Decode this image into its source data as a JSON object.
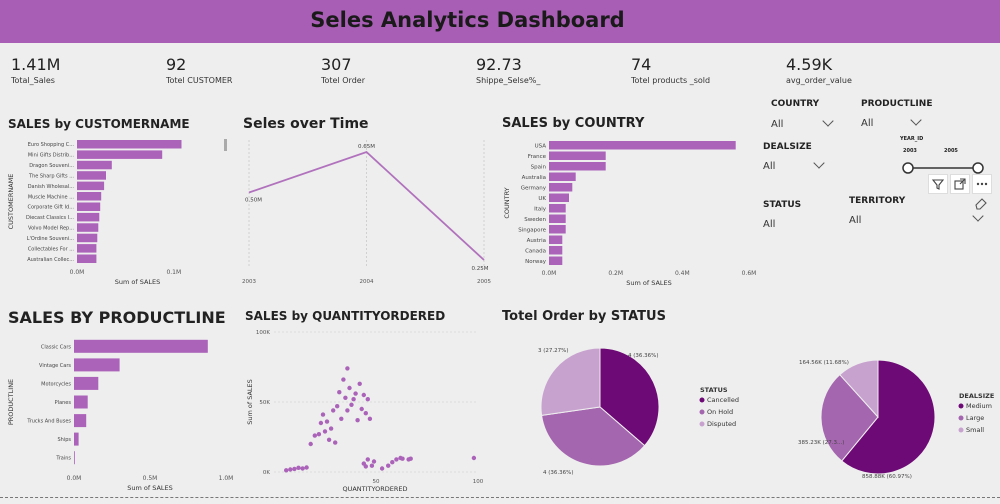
{
  "dashboard": {
    "title": "Seles Analytics Dashboard"
  },
  "colors": {
    "banner": "#a95eb5",
    "bar": "#ab62b9",
    "line": "#b172bd",
    "dark_purple": "#6e0a76",
    "mid_purple": "#a466ae",
    "light_purple": "#c8a2cf"
  },
  "kpis": [
    {
      "value": "1.41M",
      "label": "Total_Sales"
    },
    {
      "value": "92",
      "label": "Totel CUSTOMER"
    },
    {
      "value": "307",
      "label": "Totel Order"
    },
    {
      "value": "92.73",
      "label": "Shippe_Selse%_"
    },
    {
      "value": "74",
      "label": "Totel products _sold"
    },
    {
      "value": "4.59K",
      "label": "avg_order_value"
    }
  ],
  "filters": {
    "country": {
      "title": "COUNTRY",
      "value": "All"
    },
    "productline": {
      "title": "PRODUCTLINE",
      "value": "All"
    },
    "dealsize": {
      "title": "DEALSIZE",
      "value": "All"
    },
    "status": {
      "title": "STATUS",
      "value": "All"
    },
    "territory": {
      "title": "TERRITORY",
      "value": "All"
    },
    "year": {
      "title": "YEAR_ID",
      "min_label": "2003",
      "max_label": "2005",
      "range": [
        2003,
        2005
      ]
    }
  },
  "icons": [
    "filter-icon",
    "expand-icon",
    "more-options-icon",
    "eraser-icon",
    "scrollbar"
  ],
  "chart_data": [
    {
      "id": "customer",
      "type": "bar",
      "orientation": "horizontal",
      "title": "SALES by CUSTOMERNAME",
      "ylabel": "CUSTOMERNAME",
      "xlabel": "Sum of SALES",
      "categories": [
        "Euro Shopping C...",
        "Mini Gifts Distrib...",
        "Dragon Souveni...",
        "The Sharp Gifts ...",
        "Danish Wholesal...",
        "Muscle Machine ...",
        "Corporate Gift Id...",
        "Diecast Classics I...",
        "Volvo Model Rep...",
        "L'Ordine Souveni...",
        "Collectables For ...",
        "Australian Collec..."
      ],
      "values": [
        0.108,
        0.088,
        0.036,
        0.03,
        0.028,
        0.025,
        0.024,
        0.023,
        0.022,
        0.021,
        0.02,
        0.02
      ],
      "xticks": [
        "0.0M",
        "0.1M"
      ],
      "xtick_values": [
        0,
        0.1
      ],
      "xlim": [
        0,
        0.125
      ]
    },
    {
      "id": "time",
      "type": "line",
      "title": "Seles over Time",
      "categories": [
        "2003",
        "2004",
        "2005"
      ],
      "values": [
        0.5,
        0.65,
        0.25
      ],
      "data_labels": [
        "0.50M",
        "0.65M",
        "0.25M"
      ],
      "ylim": [
        0.25,
        0.65
      ]
    },
    {
      "id": "country",
      "type": "bar",
      "orientation": "horizontal",
      "title": "SALES by COUNTRY",
      "ylabel": "COUNTRY",
      "xlabel": "Sum of SALES",
      "categories": [
        "USA",
        "France",
        "Spain",
        "Australia",
        "Germany",
        "UK",
        "Italy",
        "Sweden",
        "Singapore",
        "Austria",
        "Canada",
        "Norway"
      ],
      "values": [
        0.56,
        0.17,
        0.17,
        0.08,
        0.07,
        0.06,
        0.05,
        0.05,
        0.05,
        0.04,
        0.04,
        0.04
      ],
      "xticks": [
        "0.0M",
        "0.2M",
        "0.4M",
        "0.6M"
      ],
      "xtick_values": [
        0,
        0.2,
        0.4,
        0.6
      ],
      "xlim": [
        0,
        0.6
      ]
    },
    {
      "id": "productline",
      "type": "bar",
      "orientation": "horizontal",
      "title": "SALES BY PRODUCTLINE",
      "ylabel": "PRODUCTLINE",
      "xlabel": "Sum of SALES",
      "categories": [
        "Classic Cars",
        "Vintage Cars",
        "Motorcycles",
        "Planes",
        "Trucks And Buses",
        "Ships",
        "Trains"
      ],
      "values": [
        0.88,
        0.3,
        0.16,
        0.09,
        0.08,
        0.03,
        0.004
      ],
      "xticks": [
        "0.0M",
        "0.5M",
        "1.0M"
      ],
      "xtick_values": [
        0,
        0.5,
        1.0
      ],
      "xlim": [
        0,
        1.0
      ]
    },
    {
      "id": "quantity",
      "type": "scatter",
      "title": "SALES by QUANTITYORDERED",
      "xlabel": "QUANTITYORDERED",
      "ylabel": "Sum of SALES",
      "xticks": [
        "50",
        "100"
      ],
      "xtick_values": [
        50,
        100
      ],
      "yticks": [
        "0K",
        "50K",
        "100K"
      ],
      "ytick_values": [
        0,
        50000,
        100000
      ],
      "xlim": [
        0,
        100
      ],
      "ylim": [
        0,
        100000
      ],
      "points": [
        [
          6,
          1200
        ],
        [
          8,
          1800
        ],
        [
          10,
          2200
        ],
        [
          12,
          3000
        ],
        [
          14,
          2500
        ],
        [
          16,
          3200
        ],
        [
          18,
          20000
        ],
        [
          20,
          26000
        ],
        [
          22,
          27000
        ],
        [
          23,
          35000
        ],
        [
          24,
          41000
        ],
        [
          25,
          29000
        ],
        [
          26,
          36000
        ],
        [
          27,
          23000
        ],
        [
          28,
          31000
        ],
        [
          29,
          44000
        ],
        [
          30,
          21000
        ],
        [
          31,
          47000
        ],
        [
          32,
          57000
        ],
        [
          33,
          38000
        ],
        [
          34,
          66000
        ],
        [
          35,
          53000
        ],
        [
          36,
          74000
        ],
        [
          36,
          44000
        ],
        [
          37,
          60000
        ],
        [
          38,
          48000
        ],
        [
          39,
          52000
        ],
        [
          40,
          56000
        ],
        [
          41,
          37000
        ],
        [
          42,
          63000
        ],
        [
          43,
          45000
        ],
        [
          44,
          55000
        ],
        [
          45,
          42000
        ],
        [
          46,
          52000
        ],
        [
          47,
          38000
        ],
        [
          44,
          6000
        ],
        [
          45,
          4000
        ],
        [
          46,
          9000
        ],
        [
          48,
          4500
        ],
        [
          49,
          7500
        ],
        [
          53,
          2500
        ],
        [
          56,
          4500
        ],
        [
          58,
          7000
        ],
        [
          60,
          9000
        ],
        [
          62,
          10000
        ],
        [
          63,
          9500
        ],
        [
          66,
          9000
        ],
        [
          67,
          9500
        ],
        [
          98,
          10000
        ]
      ]
    },
    {
      "id": "status",
      "type": "pie",
      "title": "Totel Order by STATUS",
      "legend_title": "STATUS",
      "legend_position": "right",
      "slices": [
        {
          "label": "Cancelled",
          "value": 4,
          "pct": 36.36,
          "data_label": "4 (36.36%)",
          "color": "#6e0a76"
        },
        {
          "label": "On Hold",
          "value": 4,
          "pct": 36.36,
          "data_label": "4 (36.36%)",
          "color": "#a466ae"
        },
        {
          "label": "Disputed",
          "value": 3,
          "pct": 27.27,
          "data_label": "3 (27.27%)",
          "color": "#c8a2cf"
        }
      ]
    },
    {
      "id": "dealsize",
      "type": "pie",
      "legend_title": "DEALSIZE",
      "legend_position": "right",
      "slices": [
        {
          "label": "Medium",
          "value": 858.88,
          "pct": 60.97,
          "data_label": "858.88K (60.97%)",
          "color": "#6e0a76"
        },
        {
          "label": "Large",
          "value": 385.23,
          "pct": 27.35,
          "data_label": "385.23K (27.3...)",
          "color": "#a466ae"
        },
        {
          "label": "Small",
          "value": 164.56,
          "pct": 11.68,
          "data_label": "164.56K (11.68%)",
          "color": "#c8a2cf"
        }
      ]
    }
  ]
}
